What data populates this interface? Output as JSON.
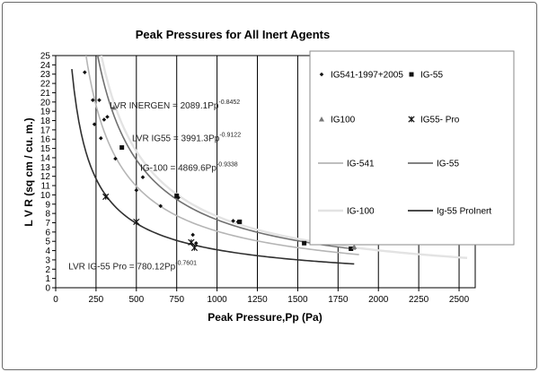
{
  "chart_data": {
    "type": "scatter",
    "title": "Peak Pressures for All Inert Agents",
    "xlabel": "Peak Pressure,Pp (Pa)",
    "ylabel": "L V R (sq cm / cu. m.)",
    "xlim": [
      0,
      2600
    ],
    "ylim": [
      0,
      25
    ],
    "x_ticks": [
      "0",
      "250",
      "500",
      "750",
      "1000",
      "1250",
      "1500",
      "1750",
      "2000",
      "2250",
      "2500"
    ],
    "y_ticks": [
      "0",
      "1",
      "2",
      "3",
      "4",
      "5",
      "6",
      "7",
      "8",
      "9",
      "10",
      "11",
      "12",
      "13",
      "14",
      "15",
      "16",
      "17",
      "18",
      "19",
      "20",
      "21",
      "22",
      "23",
      "24",
      "25"
    ],
    "x_grid_values": [
      250,
      500,
      750,
      1000,
      1250,
      1500,
      1750,
      2000,
      2250,
      2500
    ],
    "grid": "vertical",
    "legend_position": "top-right",
    "colors": {
      "ig541_line": "#b5b5b5",
      "ig55_line": "#707070",
      "ig100_line": "#e3e3e3",
      "ig55pro_line": "#303030",
      "marker_dark": "#111111",
      "marker_gray": "#777777"
    },
    "legend": {
      "items": [
        {
          "label": "IG541-1997+2005",
          "symbol": "diamond"
        },
        {
          "label": "IG-55",
          "symbol": "square"
        },
        {
          "label": "IG100",
          "symbol": "triangle"
        },
        {
          "label": "IG55- Pro",
          "symbol": "star"
        },
        {
          "label": "IG-541",
          "symbol": "line",
          "color_key": "ig541_line"
        },
        {
          "label": "IG-55",
          "symbol": "line",
          "color_key": "ig55_line"
        },
        {
          "label": "IG-100",
          "symbol": "line",
          "color_key": "ig100_line"
        },
        {
          "label": "Ig-55 ProInert",
          "symbol": "line",
          "color_key": "ig55pro_line"
        }
      ]
    },
    "series": [
      {
        "name": "IG541-1997+2005",
        "type": "scatter",
        "marker": "diamond",
        "x": [
          180,
          230,
          240,
          270,
          280,
          300,
          320,
          370,
          500,
          540,
          650,
          760,
          850,
          870,
          1100,
          1130
        ],
        "y": [
          23.2,
          20.2,
          17.6,
          20.2,
          16.1,
          18.1,
          18.4,
          13.9,
          10.5,
          11.9,
          8.8,
          9.7,
          5.7,
          4.8,
          7.2,
          7.1
        ]
      },
      {
        "name": "IG-55",
        "type": "scatter",
        "marker": "square",
        "x": [
          410,
          750,
          1140,
          1540,
          1830
        ],
        "y": [
          15.1,
          9.9,
          7.1,
          4.8,
          4.2
        ]
      },
      {
        "name": "IG100",
        "type": "scatter",
        "marker": "triangle",
        "x": [
          360,
          1850
        ],
        "y": [
          19.4,
          4.4
        ]
      },
      {
        "name": "IG55- Pro",
        "type": "scatter",
        "marker": "star",
        "x": [
          310,
          500,
          840,
          860
        ],
        "y": [
          9.8,
          7.1,
          4.9,
          4.3
        ]
      },
      {
        "name": "IG-541",
        "type": "line",
        "color_key": "ig541_line",
        "a": 2089.1,
        "b": -0.8452,
        "x_range": [
          140,
          1880
        ]
      },
      {
        "name": "IG-55",
        "type": "line",
        "color_key": "ig55_line",
        "a": 3991.3,
        "b": -0.9122,
        "x_range": [
          165,
          1860
        ]
      },
      {
        "name": "IG-100",
        "type": "line",
        "color_key": "ig100_line",
        "a": 4869.6,
        "b": -0.9338,
        "x_range": [
          190,
          2550
        ]
      },
      {
        "name": "Ig-55 ProInert",
        "type": "line",
        "color_key": "ig55pro_line",
        "a": 780.12,
        "b": -0.7601,
        "x_range": [
          100,
          1850
        ]
      }
    ],
    "annotations": [
      {
        "text": "LVR INERGEN = 2089.1Pp",
        "sup": "-0.8452",
        "anchor_x": 335,
        "anchor_y": 19.3
      },
      {
        "text": "LVR IG55 = 3991.3Pp",
        "sup": "-0.9122",
        "anchor_x": 473,
        "anchor_y": 15.8
      },
      {
        "text": "IG-100 = 4869.6Pp",
        "sup": "-0.9338",
        "anchor_x": 524,
        "anchor_y": 12.6
      },
      {
        "text": "LVR IG-55 Pro = 780.12Pp",
        "sup": "-0.7601",
        "anchor_x": 79,
        "anchor_y": 2.0
      }
    ]
  }
}
